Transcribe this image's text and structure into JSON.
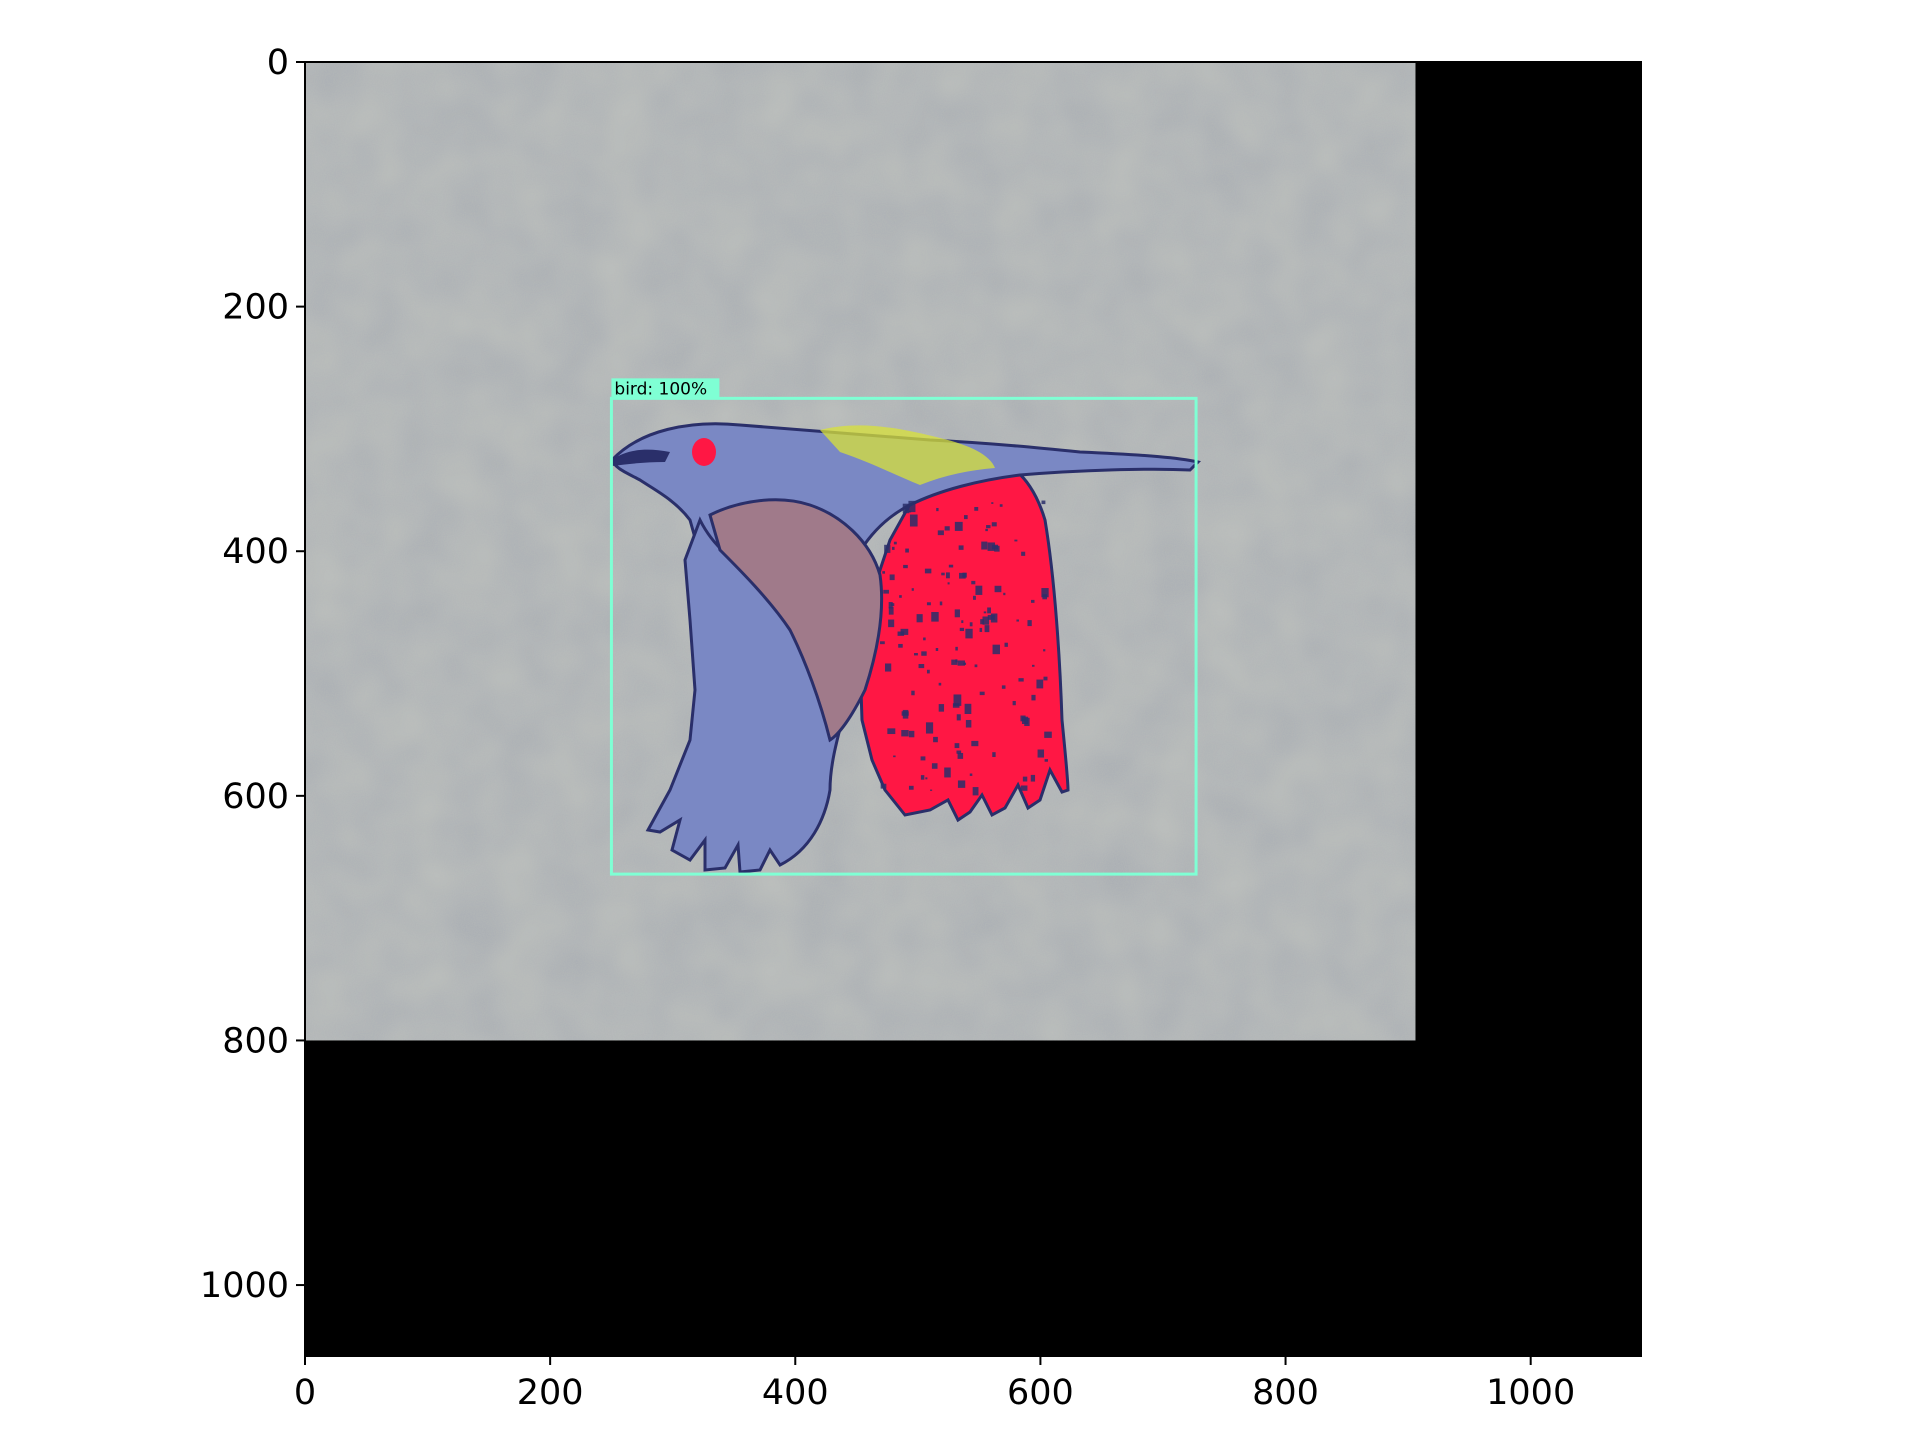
{
  "image": {
    "description": "",
    "background_color": "#a9adb4",
    "padding_color": "#000000",
    "content_extent": {
      "width": 906,
      "height": 800
    },
    "full_extent": {
      "width": 1090,
      "height": 1058
    }
  },
  "axes": {
    "x_ticks": [
      {
        "value": 0,
        "label": "0"
      },
      {
        "value": 200,
        "label": "200"
      },
      {
        "value": 400,
        "label": "400"
      },
      {
        "value": 600,
        "label": "600"
      },
      {
        "value": 800,
        "label": "800"
      },
      {
        "value": 1000,
        "label": "1000"
      }
    ],
    "y_ticks": [
      {
        "value": 0,
        "label": "0"
      },
      {
        "value": 200,
        "label": "200"
      },
      {
        "value": 400,
        "label": "400"
      },
      {
        "value": 600,
        "label": "600"
      },
      {
        "value": 800,
        "label": "800"
      },
      {
        "value": 1000,
        "label": "1000"
      }
    ],
    "xlim": [
      0,
      1090
    ],
    "ylim": [
      1058,
      0
    ]
  },
  "detection": {
    "label": "bird: 100%",
    "box": {
      "x0": 250,
      "y0": 275,
      "x1": 727,
      "y1": 664
    },
    "color": "#7fffd4"
  },
  "colors": {
    "bird_blue": "#7a88c4",
    "bird_red": "#ff1744",
    "bird_dark": "#2a2f6a",
    "bird_yellow": "#d8e23a",
    "bird_mauve": "#a07a8a"
  }
}
